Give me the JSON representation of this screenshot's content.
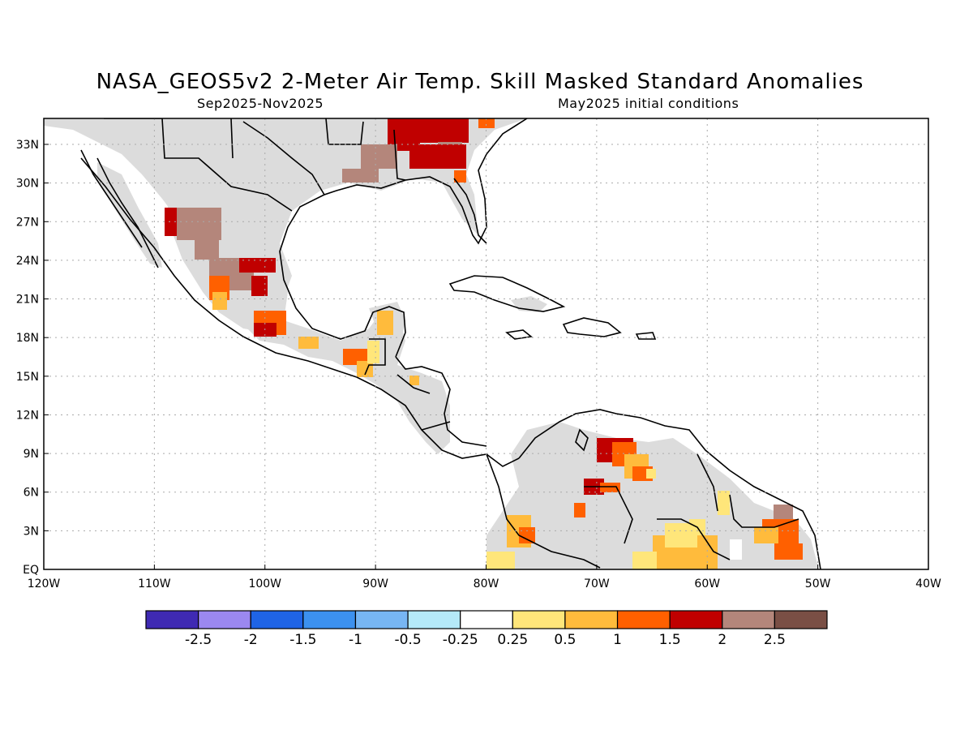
{
  "title": "NASA_GEOS5v2 2-Meter Air Temp. Skill Masked Standard Anomalies",
  "period": "Sep2025-Nov2025",
  "init": "May2025 initial conditions",
  "lat_labels": [
    "EQ",
    "3N",
    "6N",
    "9N",
    "12N",
    "15N",
    "18N",
    "21N",
    "24N",
    "27N",
    "30N",
    "33N"
  ],
  "lon_labels": [
    "120W",
    "110W",
    "100W",
    "90W",
    "80W",
    "70W",
    "60W",
    "50W",
    "40W"
  ],
  "colorbar": {
    "labels": [
      "-2.5",
      "-2",
      "-1.5",
      "-1",
      "-0.5",
      "-0.25",
      "0.25",
      "0.5",
      "1",
      "1.5",
      "2",
      "2.5"
    ],
    "colors": [
      "#3f2ab3",
      "#9b88f0",
      "#1f64e6",
      "#3c91ef",
      "#77b6f3",
      "#b5eaf9",
      "#ffffff",
      "#ffe67a",
      "#ffbb3c",
      "#ff6000",
      "#c00000",
      "#b4867b",
      "#7a4f45"
    ]
  },
  "colors": {
    "mask_gray": "#dcdcdc",
    "land_border": "#000000",
    "grid": "#aaaaaa"
  }
}
